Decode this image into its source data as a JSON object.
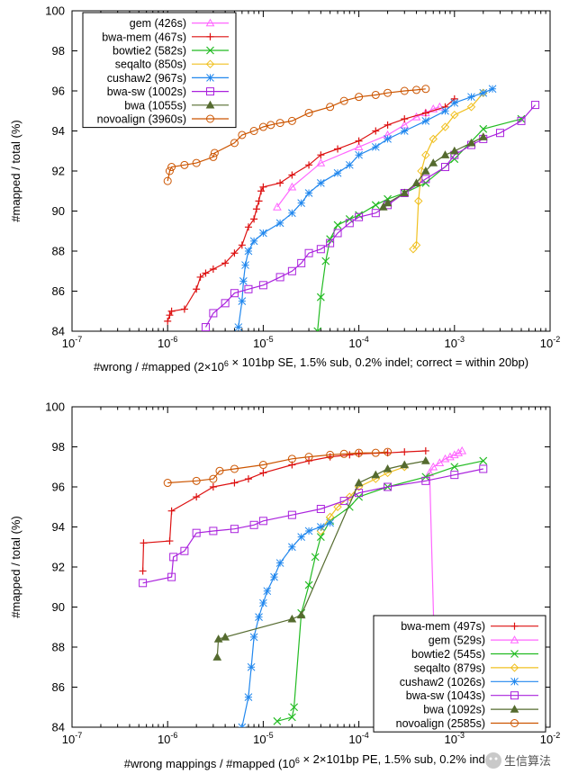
{
  "chart_data": [
    {
      "type": "line",
      "xscale": "log",
      "xlim": [
        1e-07,
        0.01
      ],
      "ylim": [
        84,
        100
      ],
      "xticks": [
        "10-7",
        "10-6",
        "10-5",
        "10-4",
        "10-3",
        "10-2"
      ],
      "yticks": [
        "84",
        "86",
        "88",
        "90",
        "92",
        "94",
        "96",
        "98",
        "100"
      ],
      "ylabel": "#mapped / total (%)",
      "xlabel": "#wrong / #mapped (2×106 × 101bp SE, 1.5% sub, 0.2% indel; correct = within 20bp)",
      "legend_position": "top-left",
      "series": [
        {
          "name": "gem (426s)",
          "color": "#ff66ff",
          "marker": "triangle-open",
          "x": [
            1.4e-05,
            2e-05,
            4e-05,
            0.0001,
            0.0002,
            0.0003,
            0.0004,
            0.0005,
            0.0006,
            0.0007
          ],
          "y": [
            90.2,
            91.2,
            92.4,
            93.2,
            93.8,
            94.3,
            94.7,
            94.9,
            95.1,
            95.2
          ]
        },
        {
          "name": "bwa-mem (467s)",
          "color": "#dd1111",
          "marker": "plus",
          "x": [
            1e-06,
            1.05e-06,
            1.1e-06,
            1.5e-06,
            2e-06,
            2.2e-06,
            2.5e-06,
            3e-06,
            4e-06,
            5e-06,
            6e-06,
            7e-06,
            8e-06,
            8.5e-06,
            9e-06,
            9.5e-06,
            1e-05,
            1.5e-05,
            2e-05,
            3e-05,
            4e-05,
            6e-05,
            0.0001,
            0.00015,
            0.0002,
            0.0003,
            0.0005,
            0.0008,
            0.001
          ],
          "y": [
            84.5,
            84.8,
            85.0,
            85.1,
            86.1,
            86.7,
            86.9,
            87.1,
            87.4,
            87.9,
            88.3,
            89.2,
            89.6,
            90.1,
            90.5,
            91.0,
            91.2,
            91.4,
            91.8,
            92.3,
            92.8,
            93.1,
            93.5,
            94.0,
            94.3,
            94.6,
            94.9,
            95.2,
            95.6
          ]
        },
        {
          "name": "bowtie2 (582s)",
          "color": "#22bb22",
          "marker": "x",
          "x": [
            3.7e-05,
            4e-05,
            4.5e-05,
            5e-05,
            6e-05,
            8e-05,
            0.0001,
            0.00015,
            0.0002,
            0.0003,
            0.0005,
            0.001,
            0.002,
            0.005
          ],
          "y": [
            84.0,
            85.7,
            87.5,
            88.6,
            89.3,
            89.6,
            89.8,
            90.3,
            90.6,
            90.9,
            91.4,
            92.6,
            94.1,
            94.6
          ]
        },
        {
          "name": "seqalto (850s)",
          "color": "#f0c020",
          "marker": "diamond-open",
          "x": [
            0.00037,
            0.0004,
            0.00042,
            0.00045,
            0.0005,
            0.0006,
            0.0008,
            0.001,
            0.0015,
            0.002
          ],
          "y": [
            88.1,
            88.3,
            90.5,
            92.0,
            92.8,
            93.6,
            94.2,
            94.8,
            95.2,
            95.9
          ]
        },
        {
          "name": "cushaw2 (967s)",
          "color": "#2288ee",
          "marker": "star",
          "x": [
            5.5e-06,
            6e-06,
            6.2e-06,
            6.5e-06,
            7e-06,
            8e-06,
            1e-05,
            1.5e-05,
            2e-05,
            2.5e-05,
            3e-05,
            4e-05,
            6e-05,
            8e-05,
            0.0001,
            0.00015,
            0.0002,
            0.0003,
            0.0005,
            0.0008,
            0.001,
            0.0015,
            0.002,
            0.0025
          ],
          "y": [
            84.2,
            85.5,
            86.5,
            87.3,
            88.0,
            88.5,
            88.9,
            89.4,
            89.9,
            90.4,
            90.9,
            91.4,
            91.9,
            92.3,
            92.8,
            93.2,
            93.6,
            94.0,
            94.5,
            95.0,
            95.4,
            95.7,
            95.9,
            96.1
          ]
        },
        {
          "name": "bwa-sw (1002s)",
          "color": "#aa22dd",
          "marker": "square-open",
          "x": [
            2.5e-06,
            3e-06,
            4e-06,
            5e-06,
            7e-06,
            1e-05,
            1.5e-05,
            2e-05,
            2.5e-05,
            3e-05,
            4e-05,
            5e-05,
            6e-05,
            8e-05,
            0.0001,
            0.00015,
            0.0002,
            0.0003,
            0.0005,
            0.0008,
            0.001,
            0.0015,
            0.002,
            0.003,
            0.005,
            0.007
          ],
          "y": [
            84.2,
            84.9,
            85.4,
            85.9,
            86.1,
            86.3,
            86.7,
            87.0,
            87.4,
            87.9,
            88.1,
            88.4,
            88.9,
            89.4,
            89.7,
            89.9,
            90.3,
            90.9,
            91.6,
            92.2,
            92.8,
            93.3,
            93.6,
            93.9,
            94.5,
            95.3
          ]
        },
        {
          "name": "bwa (1055s)",
          "color": "#556b2f",
          "marker": "triangle",
          "x": [
            0.00018,
            0.0002,
            0.0003,
            0.0004,
            0.0005,
            0.0006,
            0.0008,
            0.001,
            0.0015,
            0.002
          ],
          "y": [
            90.2,
            90.4,
            90.9,
            91.4,
            92.0,
            92.4,
            92.8,
            93.0,
            93.4,
            93.7
          ]
        },
        {
          "name": "novoalign (3960s)",
          "color": "#cc5500",
          "marker": "circle-open",
          "x": [
            1e-06,
            1.05e-06,
            1.1e-06,
            1.5e-06,
            2e-06,
            3e-06,
            3.1e-06,
            5e-06,
            6e-06,
            8e-06,
            1e-05,
            1.2e-05,
            1.5e-05,
            2e-05,
            3e-05,
            5e-05,
            7e-05,
            0.0001,
            0.00015,
            0.0002,
            0.0003,
            0.0004,
            0.0005
          ],
          "y": [
            91.5,
            92.0,
            92.2,
            92.3,
            92.4,
            92.7,
            92.9,
            93.4,
            93.8,
            94.0,
            94.2,
            94.3,
            94.4,
            94.5,
            94.9,
            95.2,
            95.5,
            95.7,
            95.8,
            95.9,
            96.0,
            96.05,
            96.1
          ]
        }
      ]
    },
    {
      "type": "line",
      "xscale": "log",
      "xlim": [
        1e-07,
        0.01
      ],
      "ylim": [
        84,
        100
      ],
      "xticks": [
        "10-7",
        "10-6",
        "10-5",
        "10-4",
        "10-3",
        "10-2"
      ],
      "yticks": [
        "84",
        "86",
        "88",
        "90",
        "92",
        "94",
        "96",
        "98",
        "100"
      ],
      "ylabel": "#mapped / total (%)",
      "xlabel": "#wrong mappings / #mapped (106 × 2×101bp PE, 1.5% sub, 0.2% indel)",
      "legend_position": "bottom-right",
      "series": [
        {
          "name": "bwa-mem (497s)",
          "color": "#dd1111",
          "marker": "plus",
          "x": [
            5.5e-07,
            5.6e-07,
            1.05e-06,
            1.1e-06,
            2e-06,
            3e-06,
            5e-06,
            7e-06,
            1e-05,
            2e-05,
            3e-05,
            5e-05,
            8e-05,
            0.0001,
            0.0002,
            0.0003,
            0.0005
          ],
          "y": [
            91.8,
            93.2,
            93.3,
            94.8,
            95.5,
            96.0,
            96.2,
            96.4,
            96.7,
            97.1,
            97.3,
            97.5,
            97.6,
            97.65,
            97.7,
            97.75,
            97.8
          ]
        },
        {
          "name": "gem (529s)",
          "color": "#ff66ff",
          "marker": "triangle-open",
          "x": [
            0.00065,
            0.00055,
            0.0006,
            0.0007,
            0.0008,
            0.0009,
            0.001,
            0.0011,
            0.0012
          ],
          "y": [
            84.0,
            96.7,
            97.0,
            97.2,
            97.4,
            97.5,
            97.6,
            97.7,
            97.8
          ]
        },
        {
          "name": "bowtie2 (545s)",
          "color": "#22bb22",
          "marker": "x",
          "x": [
            1.4e-05,
            2e-05,
            2.1e-05,
            2.5e-05,
            3e-05,
            3.5e-05,
            4e-05,
            5e-05,
            8e-05,
            0.0001,
            0.0002,
            0.0005,
            0.001,
            0.002
          ],
          "y": [
            84.3,
            84.5,
            85.0,
            89.7,
            91.1,
            92.5,
            93.5,
            94.3,
            95.0,
            95.5,
            96.0,
            96.5,
            97.0,
            97.3
          ]
        },
        {
          "name": "seqalto (879s)",
          "color": "#f0c020",
          "marker": "diamond-open",
          "x": [
            4e-05,
            5e-05,
            6e-05,
            8e-05,
            0.0001,
            0.00015,
            0.0002,
            0.0003
          ],
          "y": [
            93.8,
            94.5,
            95.0,
            95.5,
            96.0,
            96.4,
            96.7,
            97.0
          ]
        },
        {
          "name": "cushaw2 (1026s)",
          "color": "#2288ee",
          "marker": "star",
          "x": [
            6e-06,
            7e-06,
            7.5e-06,
            8e-06,
            9e-06,
            1e-05,
            1.1e-05,
            1.3e-05,
            1.5e-05,
            2e-05,
            2.5e-05,
            3e-05,
            4e-05,
            5e-05
          ],
          "y": [
            84.0,
            85.5,
            87.0,
            88.5,
            89.5,
            90.2,
            90.8,
            91.5,
            92.2,
            93.0,
            93.5,
            93.8,
            94.0,
            94.2
          ]
        },
        {
          "name": "bwa-sw (1043s)",
          "color": "#aa22dd",
          "marker": "square-open",
          "x": [
            5.5e-07,
            1.1e-06,
            1.15e-06,
            1.5e-06,
            2e-06,
            3e-06,
            5e-06,
            8e-06,
            1e-05,
            2e-05,
            4e-05,
            7e-05,
            0.0001,
            0.0002,
            0.0005,
            0.001,
            0.002
          ],
          "y": [
            91.2,
            91.5,
            92.5,
            92.8,
            93.7,
            93.8,
            93.9,
            94.1,
            94.3,
            94.6,
            94.9,
            95.3,
            95.7,
            96.0,
            96.3,
            96.6,
            96.9
          ]
        },
        {
          "name": "bwa (1092s)",
          "color": "#556b2f",
          "marker": "triangle",
          "x": [
            3.3e-06,
            3.4e-06,
            4e-06,
            2e-05,
            2.5e-05,
            0.0001,
            0.00015,
            0.0002,
            0.0003,
            0.0005
          ],
          "y": [
            87.5,
            88.4,
            88.5,
            89.4,
            89.6,
            96.2,
            96.6,
            96.9,
            97.1,
            97.3
          ]
        },
        {
          "name": "novoalign (2585s)",
          "color": "#cc5500",
          "marker": "circle-open",
          "x": [
            1e-06,
            2e-06,
            3e-06,
            3.5e-06,
            5e-06,
            1e-05,
            2e-05,
            3e-05,
            5e-05,
            7e-05,
            0.0001,
            0.00015,
            0.0002
          ],
          "y": [
            96.2,
            96.3,
            96.4,
            96.8,
            96.9,
            97.1,
            97.4,
            97.5,
            97.6,
            97.65,
            97.7,
            97.7,
            97.75
          ]
        }
      ]
    }
  ],
  "watermark": "生信算法"
}
